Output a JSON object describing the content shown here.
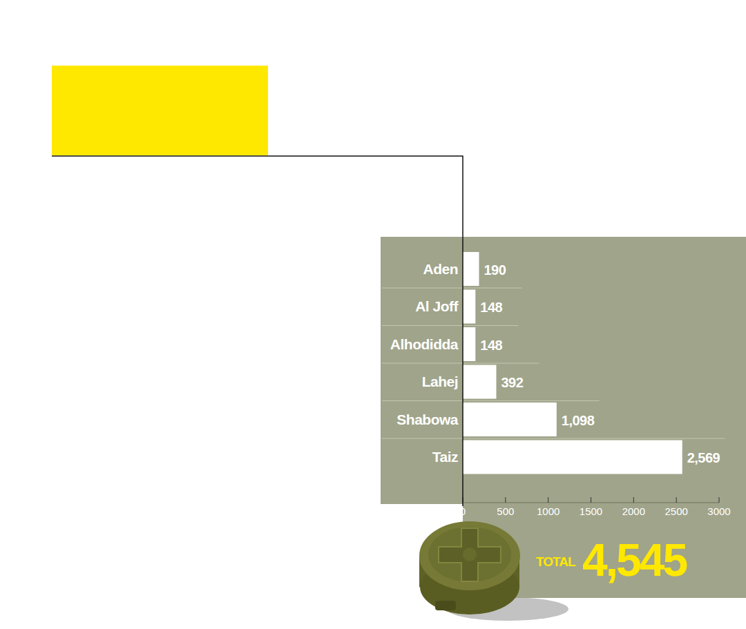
{
  "chart_data": {
    "type": "bar",
    "orientation": "horizontal",
    "categories": [
      "Aden",
      "Al Joff",
      "Alhodidda",
      "Lahej",
      "Shabowa",
      "Taiz"
    ],
    "values": [
      190,
      148,
      148,
      392,
      1098,
      2569
    ],
    "value_labels": [
      "190",
      "148",
      "148",
      "392",
      "1,098",
      "2,569"
    ],
    "data_labels": true,
    "color": "#ffffff",
    "xlim": [
      0,
      3000
    ],
    "xticks": [
      0,
      500,
      1000,
      1500,
      2000,
      2500,
      3000
    ],
    "total": {
      "label": "TOTAL",
      "value": 4545,
      "value_label": "4,545"
    }
  }
}
